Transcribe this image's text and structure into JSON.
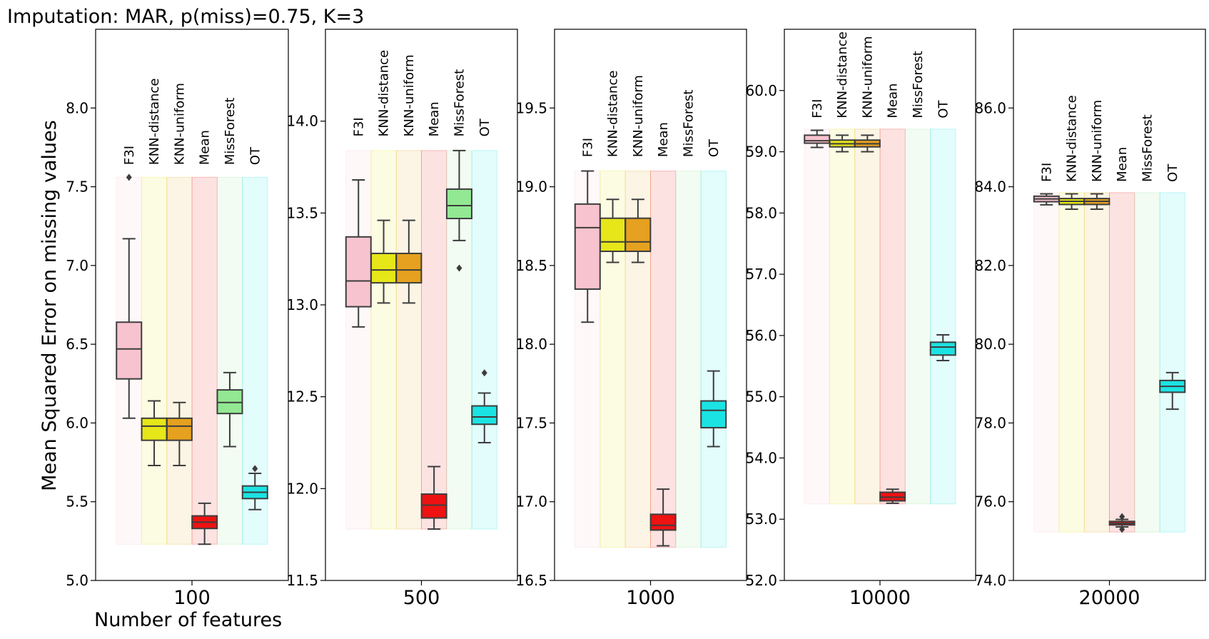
{
  "chart_data": {
    "type": "boxplot",
    "title": "Imputation: MAR, p(miss)=0.75, K=3",
    "ylabel": "Mean Squared Error on missing values",
    "xlabel": "Number of features",
    "methods": [
      "F3I",
      "KNN-distance",
      "KNN-uniform",
      "Mean",
      "MissForest",
      "OT"
    ],
    "colors": {
      "F3I": "#f7c3cf",
      "KNN-distance": "#e6e619",
      "KNN-uniform": "#e5a11f",
      "Mean": "#ee1212",
      "MissForest": "#93e893",
      "OT": "#1ce3e3"
    },
    "panels": [
      {
        "category": "100",
        "ylim": [
          5.0,
          8.5
        ],
        "ticks": [
          "5.0",
          "5.5",
          "6.0",
          "6.5",
          "7.0",
          "7.5",
          "8.0"
        ],
        "tick_values": [
          5.0,
          5.5,
          6.0,
          6.5,
          7.0,
          7.5,
          8.0
        ],
        "shade": [
          5.23,
          7.56
        ],
        "label_base": 7.62,
        "boxes": [
          {
            "method": "F3I",
            "whislo": 6.03,
            "q1": 6.28,
            "med": 6.47,
            "q3": 6.64,
            "whishi": 7.17,
            "fliers": [
              7.56
            ]
          },
          {
            "method": "KNN-distance",
            "whislo": 5.73,
            "q1": 5.89,
            "med": 5.98,
            "q3": 6.03,
            "whishi": 6.14,
            "fliers": []
          },
          {
            "method": "KNN-uniform",
            "whislo": 5.73,
            "q1": 5.89,
            "med": 5.98,
            "q3": 6.03,
            "whishi": 6.13,
            "fliers": []
          },
          {
            "method": "Mean",
            "whislo": 5.23,
            "q1": 5.33,
            "med": 5.37,
            "q3": 5.41,
            "whishi": 5.49,
            "fliers": []
          },
          {
            "method": "MissForest",
            "whislo": 5.85,
            "q1": 6.06,
            "med": 6.13,
            "q3": 6.21,
            "whishi": 6.32,
            "fliers": []
          },
          {
            "method": "OT",
            "whislo": 5.45,
            "q1": 5.52,
            "med": 5.56,
            "q3": 5.6,
            "whishi": 5.68,
            "fliers": [
              5.71
            ]
          }
        ]
      },
      {
        "category": "500",
        "ylim": [
          11.5,
          14.5
        ],
        "ticks": [
          "11.5",
          "12.0",
          "12.5",
          "13.0",
          "13.5",
          "14.0"
        ],
        "tick_values": [
          11.5,
          12.0,
          12.5,
          13.0,
          13.5,
          14.0
        ],
        "shade": [
          11.78,
          13.84
        ],
        "label_base": 13.9,
        "boxes": [
          {
            "method": "F3I",
            "whislo": 12.88,
            "q1": 12.99,
            "med": 13.13,
            "q3": 13.37,
            "whishi": 13.68,
            "fliers": []
          },
          {
            "method": "KNN-distance",
            "whislo": 13.01,
            "q1": 13.12,
            "med": 13.19,
            "q3": 13.28,
            "whishi": 13.46,
            "fliers": []
          },
          {
            "method": "KNN-uniform",
            "whislo": 13.01,
            "q1": 13.12,
            "med": 13.19,
            "q3": 13.28,
            "whishi": 13.46,
            "fliers": []
          },
          {
            "method": "Mean",
            "whislo": 11.78,
            "q1": 11.84,
            "med": 11.91,
            "q3": 11.97,
            "whishi": 12.12,
            "fliers": []
          },
          {
            "method": "MissForest",
            "whislo": 13.35,
            "q1": 13.47,
            "med": 13.54,
            "q3": 13.63,
            "whishi": 13.84,
            "fliers": [
              13.2
            ]
          },
          {
            "method": "OT",
            "whislo": 12.25,
            "q1": 12.35,
            "med": 12.39,
            "q3": 12.45,
            "whishi": 12.52,
            "fliers": [
              12.63
            ]
          }
        ]
      },
      {
        "category": "1000",
        "ylim": [
          16.5,
          20.0
        ],
        "ticks": [
          "16.5",
          "17.0",
          "17.5",
          "18.0",
          "18.5",
          "19.0",
          "19.5"
        ],
        "tick_values": [
          16.5,
          17.0,
          17.5,
          18.0,
          18.5,
          19.0,
          19.5
        ],
        "shade": [
          16.71,
          19.1
        ],
        "label_base": 19.17,
        "boxes": [
          {
            "method": "F3I",
            "whislo": 18.14,
            "q1": 18.35,
            "med": 18.74,
            "q3": 18.89,
            "whishi": 19.1,
            "fliers": []
          },
          {
            "method": "KNN-distance",
            "whislo": 18.52,
            "q1": 18.59,
            "med": 18.65,
            "q3": 18.8,
            "whishi": 18.92,
            "fliers": []
          },
          {
            "method": "KNN-uniform",
            "whislo": 18.52,
            "q1": 18.59,
            "med": 18.65,
            "q3": 18.8,
            "whishi": 18.92,
            "fliers": []
          },
          {
            "method": "Mean",
            "whislo": 16.72,
            "q1": 16.82,
            "med": 16.85,
            "q3": 16.92,
            "whishi": 17.08,
            "fliers": []
          },
          {
            "method": "MissForest",
            "whislo": null,
            "q1": null,
            "med": null,
            "q3": null,
            "whishi": null,
            "fliers": []
          },
          {
            "method": "OT",
            "whislo": 17.35,
            "q1": 17.47,
            "med": 17.58,
            "q3": 17.64,
            "whishi": 17.83,
            "fliers": []
          }
        ]
      },
      {
        "category": "10000",
        "ylim": [
          52.0,
          61.0
        ],
        "ticks": [
          "52.0",
          "53.0",
          "54.0",
          "55.0",
          "56.0",
          "57.0",
          "58.0",
          "59.0",
          "60.0"
        ],
        "tick_values": [
          52.0,
          53.0,
          54.0,
          55.0,
          56.0,
          57.0,
          58.0,
          59.0,
          60.0
        ],
        "shade": [
          53.25,
          59.37
        ],
        "label_base": 59.5,
        "boxes": [
          {
            "method": "F3I",
            "whislo": 59.07,
            "q1": 59.14,
            "med": 59.18,
            "q3": 59.27,
            "whishi": 59.35,
            "fliers": []
          },
          {
            "method": "KNN-distance",
            "whislo": 59.0,
            "q1": 59.08,
            "med": 59.13,
            "q3": 59.19,
            "whishi": 59.27,
            "fliers": []
          },
          {
            "method": "KNN-uniform",
            "whislo": 59.0,
            "q1": 59.08,
            "med": 59.13,
            "q3": 59.19,
            "whishi": 59.27,
            "fliers": []
          },
          {
            "method": "Mean",
            "whislo": 53.26,
            "q1": 53.3,
            "med": 53.36,
            "q3": 53.44,
            "whishi": 53.49,
            "fliers": []
          },
          {
            "method": "MissForest",
            "whislo": null,
            "q1": null,
            "med": null,
            "q3": null,
            "whishi": null,
            "fliers": []
          },
          {
            "method": "OT",
            "whislo": 55.59,
            "q1": 55.68,
            "med": 55.81,
            "q3": 55.89,
            "whishi": 56.01,
            "fliers": []
          }
        ]
      },
      {
        "category": "20000",
        "ylim": [
          74.0,
          88.0
        ],
        "ticks": [
          "74.0",
          "76.0",
          "78.0",
          "80.0",
          "82.0",
          "84.0",
          "86.0"
        ],
        "tick_values": [
          74.0,
          76.0,
          78.0,
          80.0,
          82.0,
          84.0,
          86.0
        ],
        "shade": [
          75.23,
          83.85
        ],
        "label_base": 84.05,
        "boxes": [
          {
            "method": "F3I",
            "whislo": 83.54,
            "q1": 83.62,
            "med": 83.69,
            "q3": 83.76,
            "whishi": 83.82,
            "fliers": []
          },
          {
            "method": "KNN-distance",
            "whislo": 83.43,
            "q1": 83.55,
            "med": 83.63,
            "q3": 83.7,
            "whishi": 83.82,
            "fliers": []
          },
          {
            "method": "KNN-uniform",
            "whislo": 83.43,
            "q1": 83.55,
            "med": 83.63,
            "q3": 83.7,
            "whishi": 83.82,
            "fliers": []
          },
          {
            "method": "Mean",
            "whislo": 75.36,
            "q1": 75.41,
            "med": 75.45,
            "q3": 75.5,
            "whishi": 75.55,
            "fliers": [
              75.62,
              75.3
            ]
          },
          {
            "method": "MissForest",
            "whislo": null,
            "q1": null,
            "med": null,
            "q3": null,
            "whishi": null,
            "fliers": []
          },
          {
            "method": "OT",
            "whislo": 78.35,
            "q1": 78.78,
            "med": 78.93,
            "q3": 79.08,
            "whishi": 79.28,
            "fliers": []
          }
        ]
      }
    ]
  }
}
